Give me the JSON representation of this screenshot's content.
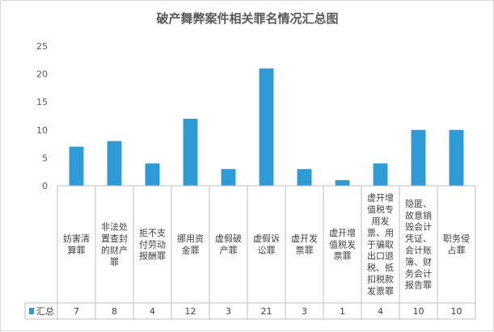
{
  "chart_data": {
    "type": "bar",
    "title": "破产舞弊案件相关罪名情况汇总图",
    "categories": [
      "妨害清算罪",
      "非法处置查封的财产罪",
      "拒不支付劳动报酬罪",
      "挪用资金罪",
      "虚假破产罪",
      "虚假诉讼罪",
      "虚开发票罪",
      "虚开增值税发票罪",
      "虚开增值税专用发票、用于骗取出口退税、抵扣税款发票罪",
      "隐匿、故意销毁会计凭证、会计账簿、财务会计报告罪",
      "职务侵占罪"
    ],
    "category_lines": [
      [
        "妨害清",
        "算罪"
      ],
      [
        "非法处",
        "置查封",
        "的财产",
        "罪"
      ],
      [
        "拒不支",
        "付劳动",
        "报酬罪"
      ],
      [
        "挪用资",
        "金罪"
      ],
      [
        "虚假破",
        "产罪"
      ],
      [
        "虚假诉",
        "讼罪"
      ],
      [
        "虚开发",
        "票罪"
      ],
      [
        "虚开增",
        "值税发",
        "票罪"
      ],
      [
        "虚开增",
        "值税专",
        "用发",
        "票、用",
        "于骗取",
        "出口退",
        "税、抵",
        "扣税款",
        "发票罪"
      ],
      [
        "隐匿、",
        "故意销",
        "毁会计",
        "凭证、",
        "会计账",
        "簿、财",
        "务会计",
        "报告罪"
      ],
      [
        "职务侵",
        "占罪"
      ]
    ],
    "series": [
      {
        "name": "汇总",
        "values": [
          7,
          8,
          4,
          12,
          3,
          21,
          3,
          1,
          4,
          10,
          10
        ]
      }
    ],
    "ylim": [
      0,
      25
    ],
    "yticks": [
      0,
      5,
      10,
      15,
      20,
      25
    ],
    "grid": false,
    "legend": "bottom-left data table",
    "colors": {
      "bar": "#2e9bd6",
      "axis": "#bfbfbf",
      "text": "#595959"
    }
  }
}
